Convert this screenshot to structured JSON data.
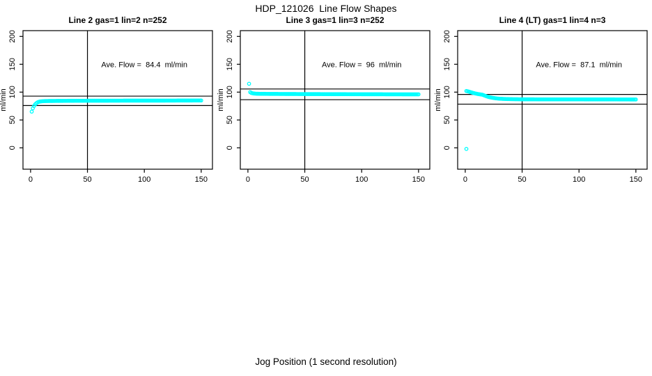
{
  "figure": {
    "title": "HDP_121026  Line Flow Shapes",
    "xlabel": "Jog Position (1 second resolution)",
    "background": "#ffffff",
    "text_color": "#000000"
  },
  "chart_data": [
    {
      "type": "scatter",
      "title": "Line 2 gas=1 lin=2 n=252",
      "ylabel": "ml/min",
      "annotation": "Ave. Flow =  84.4  ml/min",
      "annotation_at": [
        100,
        150
      ],
      "ave_flow_ml_min": 84.4,
      "marker_color": "#00ffff",
      "line_color": "#000000",
      "grid": false,
      "legend": false,
      "xlim": [
        0,
        150
      ],
      "ylim": [
        0,
        200
      ],
      "xticks": [
        0,
        50,
        100,
        150
      ],
      "yticks": [
        0,
        50,
        100,
        150,
        200
      ],
      "vline_x": 50,
      "hlines_y": [
        76,
        92.8
      ],
      "x_step": 1,
      "x_range": [
        1,
        150
      ],
      "profile": [
        [
          1,
          65
        ],
        [
          2,
          71
        ],
        [
          3,
          75
        ],
        [
          4,
          78
        ],
        [
          5,
          80
        ],
        [
          6,
          81.5
        ],
        [
          7,
          82.5
        ],
        [
          8,
          83
        ],
        [
          10,
          83.6
        ],
        [
          13,
          84
        ],
        [
          20,
          84.2
        ],
        [
          40,
          84.5
        ],
        [
          80,
          84.7
        ],
        [
          120,
          84.8
        ],
        [
          150,
          85
        ]
      ],
      "extra_points": []
    },
    {
      "type": "scatter",
      "title": "Line 3 gas=1 lin=3 n=252",
      "ylabel": "ml/min",
      "annotation": "Ave. Flow =  96  ml/min",
      "annotation_at": [
        100,
        150
      ],
      "ave_flow_ml_min": 96,
      "marker_color": "#00ffff",
      "line_color": "#000000",
      "grid": false,
      "legend": false,
      "xlim": [
        0,
        150
      ],
      "ylim": [
        0,
        200
      ],
      "xticks": [
        0,
        50,
        100,
        150
      ],
      "yticks": [
        0,
        50,
        100,
        150,
        200
      ],
      "vline_x": 50,
      "hlines_y": [
        86.4,
        105.6
      ],
      "x_step": 1,
      "x_range": [
        1,
        150
      ],
      "profile": [
        [
          1,
          115
        ],
        [
          2,
          100
        ],
        [
          3,
          98.5
        ],
        [
          4,
          98
        ],
        [
          5,
          97.6
        ],
        [
          7,
          97.2
        ],
        [
          10,
          97
        ],
        [
          20,
          96.8
        ],
        [
          40,
          96.6
        ],
        [
          80,
          96.3
        ],
        [
          120,
          96.1
        ],
        [
          150,
          96
        ]
      ],
      "extra_points": []
    },
    {
      "type": "scatter",
      "title": "Line 4 (LT) gas=1 lin=4 n=3",
      "ylabel": "ml/min",
      "annotation": "Ave. Flow =  87.1  ml/min",
      "annotation_at": [
        100,
        150
      ],
      "ave_flow_ml_min": 87.1,
      "marker_color": "#00ffff",
      "line_color": "#000000",
      "grid": false,
      "legend": false,
      "xlim": [
        0,
        150
      ],
      "ylim": [
        0,
        200
      ],
      "xticks": [
        0,
        50,
        100,
        150
      ],
      "yticks": [
        0,
        50,
        100,
        150,
        200
      ],
      "vline_x": 50,
      "hlines_y": [
        78.4,
        95.8
      ],
      "x_step": 1,
      "x_range": [
        1,
        150
      ],
      "profile": [
        [
          1,
          102
        ],
        [
          3,
          101
        ],
        [
          5,
          99.8
        ],
        [
          7,
          98.6
        ],
        [
          9,
          97.5
        ],
        [
          11,
          96.6
        ],
        [
          13,
          96
        ],
        [
          15,
          95.4
        ],
        [
          18,
          93
        ],
        [
          21,
          91
        ],
        [
          24,
          89.8
        ],
        [
          27,
          88.8
        ],
        [
          30,
          88.2
        ],
        [
          35,
          87.7
        ],
        [
          40,
          87.4
        ],
        [
          50,
          87.1
        ],
        [
          70,
          87
        ],
        [
          100,
          87
        ],
        [
          130,
          86.9
        ],
        [
          150,
          86.8
        ]
      ],
      "extra_points": [
        [
          1,
          -2
        ]
      ]
    }
  ]
}
